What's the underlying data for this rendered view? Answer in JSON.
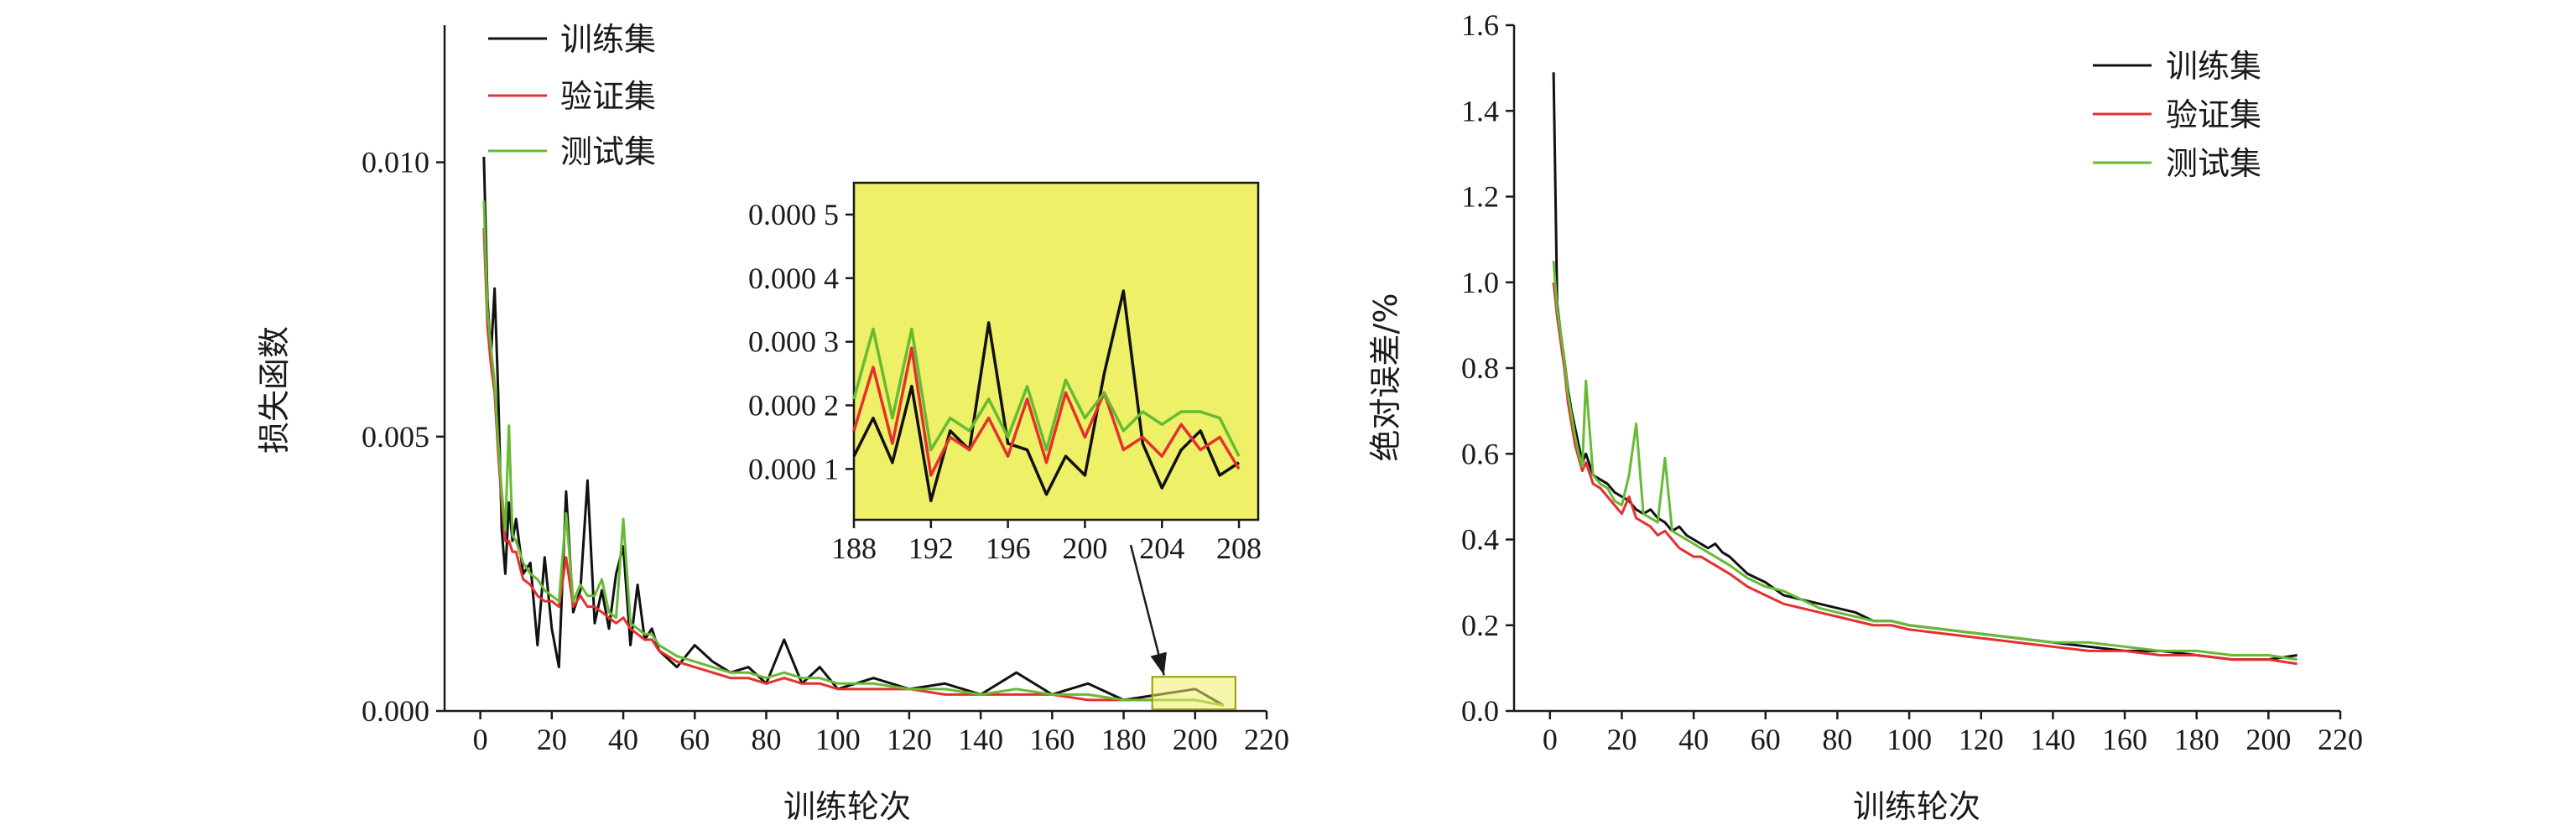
{
  "colors": {
    "train": "#111111",
    "val": "#e53030",
    "test": "#66bb33",
    "inset_bg": "#eef068",
    "axis": "#1a1a1a"
  },
  "legend": [
    "训练集",
    "验证集",
    "测试集"
  ],
  "chart_data": [
    {
      "type": "line",
      "title": "",
      "xlabel": "训练轮次",
      "ylabel": "损失函数",
      "xlim": [
        -10,
        220
      ],
      "ylim": [
        0,
        0.0125
      ],
      "xticks": [
        0,
        20,
        40,
        60,
        80,
        100,
        120,
        140,
        160,
        180,
        200,
        220
      ],
      "yticks": [
        0,
        0.005,
        0.01
      ],
      "ytick_labels": [
        "0.000",
        "0.005",
        "0.010"
      ],
      "legend_position": "top-left",
      "zoom_box": {
        "x": [
          188,
          208
        ],
        "y": [
          0,
          0.0005
        ]
      },
      "x": [
        1,
        2,
        3,
        4,
        5,
        6,
        7,
        8,
        9,
        10,
        12,
        14,
        16,
        18,
        20,
        22,
        24,
        26,
        28,
        30,
        32,
        34,
        36,
        38,
        40,
        42,
        44,
        46,
        48,
        50,
        55,
        60,
        65,
        70,
        75,
        80,
        85,
        90,
        95,
        100,
        110,
        120,
        130,
        140,
        150,
        160,
        170,
        180,
        190,
        200,
        208
      ],
      "series": [
        {
          "name": "训练集",
          "values": [
            0.0101,
            0.0075,
            0.0065,
            0.0077,
            0.0058,
            0.0033,
            0.0025,
            0.0038,
            0.0031,
            0.0035,
            0.0025,
            0.0027,
            0.0012,
            0.0028,
            0.0015,
            0.0008,
            0.004,
            0.0018,
            0.0022,
            0.0042,
            0.0016,
            0.0022,
            0.0015,
            0.0025,
            0.003,
            0.0012,
            0.0023,
            0.0013,
            0.0015,
            0.0011,
            0.0008,
            0.0012,
            0.0009,
            0.0007,
            0.0008,
            0.0005,
            0.0013,
            0.0005,
            0.0008,
            0.0004,
            0.0006,
            0.0004,
            0.0005,
            0.0003,
            0.0007,
            0.0003,
            0.0005,
            0.0002,
            0.0003,
            0.0004,
            0.0001
          ]
        },
        {
          "name": "验证集",
          "values": [
            0.0088,
            0.007,
            0.0063,
            0.0058,
            0.0047,
            0.0038,
            0.0031,
            0.0031,
            0.0029,
            0.0029,
            0.0024,
            0.0023,
            0.0021,
            0.002,
            0.002,
            0.0019,
            0.0028,
            0.0019,
            0.0021,
            0.0019,
            0.0019,
            0.0018,
            0.0017,
            0.0016,
            0.0017,
            0.0015,
            0.0014,
            0.0013,
            0.0013,
            0.0011,
            0.0009,
            0.0008,
            0.0007,
            0.0006,
            0.0006,
            0.0005,
            0.0006,
            0.0005,
            0.0005,
            0.0004,
            0.0004,
            0.0004,
            0.0003,
            0.0003,
            0.0003,
            0.0003,
            0.0002,
            0.0002,
            0.0002,
            0.0002,
            0.0001
          ]
        },
        {
          "name": "测试集",
          "values": [
            0.0093,
            0.0073,
            0.0066,
            0.006,
            0.0049,
            0.004,
            0.0033,
            0.0052,
            0.0032,
            0.0031,
            0.0027,
            0.0025,
            0.0024,
            0.0022,
            0.0021,
            0.002,
            0.0036,
            0.002,
            0.0023,
            0.0021,
            0.0021,
            0.0024,
            0.0018,
            0.0017,
            0.0035,
            0.0016,
            0.0015,
            0.0014,
            0.0014,
            0.0012,
            0.001,
            0.0009,
            0.0008,
            0.0007,
            0.0007,
            0.0006,
            0.0007,
            0.0006,
            0.0006,
            0.0005,
            0.0005,
            0.0004,
            0.0004,
            0.0003,
            0.0004,
            0.0003,
            0.0003,
            0.0002,
            0.0002,
            0.0002,
            0.0001
          ]
        }
      ],
      "inset": {
        "type": "line",
        "xlim": [
          188,
          209
        ],
        "ylim": [
          2e-05,
          0.00055
        ],
        "xticks": [
          188,
          192,
          196,
          200,
          204,
          208
        ],
        "yticks": [
          0.0001,
          0.0002,
          0.0003,
          0.0004,
          0.0005
        ],
        "ytick_labels": [
          "0.000 1",
          "0.000 2",
          "0.000 3",
          "0.000 4",
          "0.000 5"
        ],
        "background": "#eef068",
        "x": [
          188,
          189,
          190,
          191,
          192,
          193,
          194,
          195,
          196,
          197,
          198,
          199,
          200,
          201,
          202,
          203,
          204,
          205,
          206,
          207,
          208
        ],
        "series": [
          {
            "name": "训练集",
            "values": [
              0.00012,
              0.00018,
              0.00011,
              0.00023,
              5e-05,
              0.00016,
              0.00013,
              0.00033,
              0.00014,
              0.00013,
              6e-05,
              0.00012,
              9e-05,
              0.00025,
              0.00038,
              0.00014,
              7e-05,
              0.00013,
              0.00016,
              9e-05,
              0.00011
            ]
          },
          {
            "name": "验证集",
            "values": [
              0.00016,
              0.00026,
              0.00014,
              0.00029,
              9e-05,
              0.00015,
              0.00013,
              0.00018,
              0.00012,
              0.00021,
              0.00011,
              0.00022,
              0.00015,
              0.00022,
              0.00013,
              0.00015,
              0.00012,
              0.00017,
              0.00013,
              0.00015,
              0.0001
            ]
          },
          {
            "name": "测试集",
            "values": [
              0.00021,
              0.00032,
              0.00018,
              0.00032,
              0.00013,
              0.00018,
              0.00016,
              0.00021,
              0.00015,
              0.00023,
              0.00013,
              0.00024,
              0.00018,
              0.00022,
              0.00016,
              0.00019,
              0.00017,
              0.00019,
              0.00019,
              0.00018,
              0.00012
            ]
          }
        ]
      }
    },
    {
      "type": "line",
      "title": "",
      "xlabel": "训练轮次",
      "ylabel": "绝对误差/%",
      "xlim": [
        -10,
        220
      ],
      "ylim": [
        0,
        1.6
      ],
      "xticks": [
        0,
        20,
        40,
        60,
        80,
        100,
        120,
        140,
        160,
        180,
        200,
        220
      ],
      "yticks": [
        0,
        0.2,
        0.4,
        0.6,
        0.8,
        1.0,
        1.2,
        1.4,
        1.6
      ],
      "ytick_labels": [
        "0.0",
        "0.2",
        "0.4",
        "0.6",
        "0.8",
        "1.0",
        "1.2",
        "1.4",
        "1.6"
      ],
      "legend_position": "top-right",
      "x": [
        1,
        2,
        3,
        4,
        5,
        6,
        7,
        8,
        9,
        10,
        12,
        14,
        16,
        18,
        20,
        22,
        24,
        26,
        28,
        30,
        32,
        34,
        36,
        38,
        40,
        42,
        44,
        46,
        48,
        50,
        55,
        60,
        65,
        70,
        75,
        80,
        85,
        90,
        95,
        100,
        110,
        120,
        130,
        140,
        150,
        160,
        170,
        180,
        190,
        200,
        208
      ],
      "series": [
        {
          "name": "训练集",
          "values": [
            1.49,
            0.95,
            0.88,
            0.82,
            0.75,
            0.7,
            0.66,
            0.62,
            0.58,
            0.6,
            0.55,
            0.54,
            0.53,
            0.51,
            0.5,
            0.49,
            0.47,
            0.46,
            0.47,
            0.45,
            0.44,
            0.42,
            0.43,
            0.41,
            0.4,
            0.39,
            0.38,
            0.39,
            0.37,
            0.36,
            0.32,
            0.3,
            0.27,
            0.26,
            0.25,
            0.24,
            0.23,
            0.21,
            0.21,
            0.2,
            0.19,
            0.18,
            0.17,
            0.16,
            0.15,
            0.14,
            0.14,
            0.13,
            0.12,
            0.12,
            0.13
          ]
        },
        {
          "name": "验证集",
          "values": [
            1.0,
            0.92,
            0.86,
            0.8,
            0.72,
            0.67,
            0.62,
            0.59,
            0.56,
            0.58,
            0.53,
            0.52,
            0.5,
            0.48,
            0.46,
            0.5,
            0.45,
            0.44,
            0.43,
            0.41,
            0.42,
            0.4,
            0.38,
            0.37,
            0.36,
            0.36,
            0.35,
            0.34,
            0.33,
            0.32,
            0.29,
            0.27,
            0.25,
            0.24,
            0.23,
            0.22,
            0.21,
            0.2,
            0.2,
            0.19,
            0.18,
            0.17,
            0.16,
            0.15,
            0.14,
            0.14,
            0.13,
            0.13,
            0.12,
            0.12,
            0.11
          ]
        },
        {
          "name": "测试集",
          "values": [
            1.05,
            0.94,
            0.88,
            0.82,
            0.74,
            0.69,
            0.64,
            0.6,
            0.57,
            0.77,
            0.55,
            0.53,
            0.52,
            0.49,
            0.48,
            0.55,
            0.67,
            0.46,
            0.45,
            0.44,
            0.59,
            0.42,
            0.41,
            0.4,
            0.39,
            0.38,
            0.37,
            0.36,
            0.35,
            0.34,
            0.31,
            0.29,
            0.28,
            0.26,
            0.24,
            0.23,
            0.22,
            0.21,
            0.21,
            0.2,
            0.19,
            0.18,
            0.17,
            0.16,
            0.16,
            0.15,
            0.14,
            0.14,
            0.13,
            0.13,
            0.12
          ]
        }
      ]
    }
  ]
}
